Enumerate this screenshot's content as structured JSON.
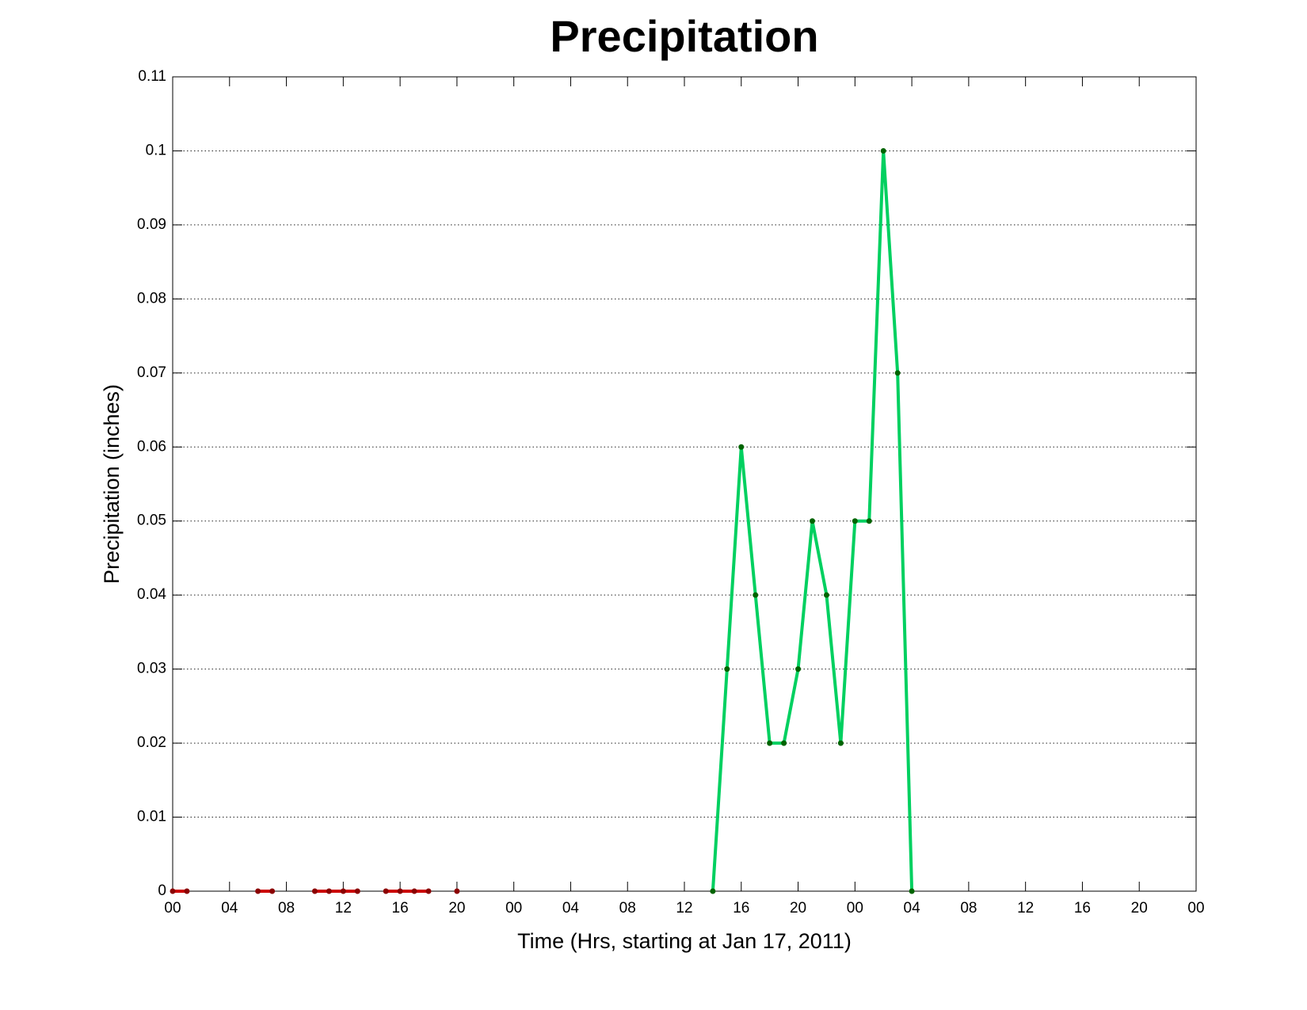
{
  "chart_data": {
    "type": "line",
    "title": "Precipitation",
    "xlabel": "Time (Hrs, starting at Jan 17, 2011)",
    "ylabel": "Precipitation (inches)",
    "x": [
      0,
      1,
      2,
      3,
      4,
      5,
      6,
      7,
      8,
      9,
      10,
      11,
      12,
      13,
      14,
      15,
      16,
      17,
      18,
      19,
      20,
      21,
      22,
      23,
      24,
      25,
      26,
      27,
      28,
      29,
      30,
      31,
      32,
      33,
      34,
      35,
      36,
      37,
      38,
      39,
      40,
      41,
      42,
      43,
      44,
      45,
      46,
      47,
      48,
      49,
      50,
      51,
      52
    ],
    "series": [
      {
        "color": "#cc0000",
        "marker_color": "#8b0000",
        "values": [
          0,
          0,
          null,
          null,
          null,
          null,
          0,
          0,
          null,
          null,
          0,
          0,
          0,
          0,
          null,
          0,
          0,
          0,
          0,
          null,
          0,
          null,
          null,
          null,
          null,
          null,
          null,
          null,
          null,
          null,
          null,
          null,
          null,
          null,
          null,
          null,
          null,
          null,
          null,
          null,
          null,
          null,
          null,
          null,
          null,
          null,
          null,
          null,
          null,
          null,
          null,
          null,
          null
        ]
      },
      {
        "color": "#00d060",
        "marker_color": "#006400",
        "values": [
          null,
          null,
          null,
          null,
          null,
          null,
          null,
          null,
          null,
          null,
          null,
          null,
          null,
          null,
          null,
          null,
          null,
          null,
          null,
          null,
          null,
          null,
          null,
          null,
          null,
          null,
          null,
          null,
          null,
          null,
          null,
          null,
          null,
          null,
          null,
          null,
          null,
          null,
          0,
          0.03,
          0.06,
          0.04,
          0.02,
          0.02,
          0.03,
          0.05,
          0.04,
          0.02,
          0.05,
          0.05,
          0.1,
          0.07,
          0
        ]
      }
    ],
    "xlim": [
      0,
      72
    ],
    "xticks": [
      {
        "value": 0,
        "label": "00"
      },
      {
        "value": 4,
        "label": "04"
      },
      {
        "value": 8,
        "label": "08"
      },
      {
        "value": 12,
        "label": "12"
      },
      {
        "value": 16,
        "label": "16"
      },
      {
        "value": 20,
        "label": "20"
      },
      {
        "value": 24,
        "label": "00"
      },
      {
        "value": 28,
        "label": "04"
      },
      {
        "value": 32,
        "label": "08"
      },
      {
        "value": 36,
        "label": "12"
      },
      {
        "value": 40,
        "label": "16"
      },
      {
        "value": 44,
        "label": "20"
      },
      {
        "value": 48,
        "label": "00"
      },
      {
        "value": 52,
        "label": "04"
      },
      {
        "value": 56,
        "label": "08"
      },
      {
        "value": 60,
        "label": "12"
      },
      {
        "value": 64,
        "label": "16"
      },
      {
        "value": 68,
        "label": "20"
      },
      {
        "value": 72,
        "label": "00"
      }
    ],
    "ylim": [
      0,
      0.11
    ],
    "yticks": [
      0,
      0.01,
      0.02,
      0.03,
      0.04,
      0.05,
      0.06,
      0.07,
      0.08,
      0.09,
      0.1,
      0.11
    ],
    "grid": true
  }
}
